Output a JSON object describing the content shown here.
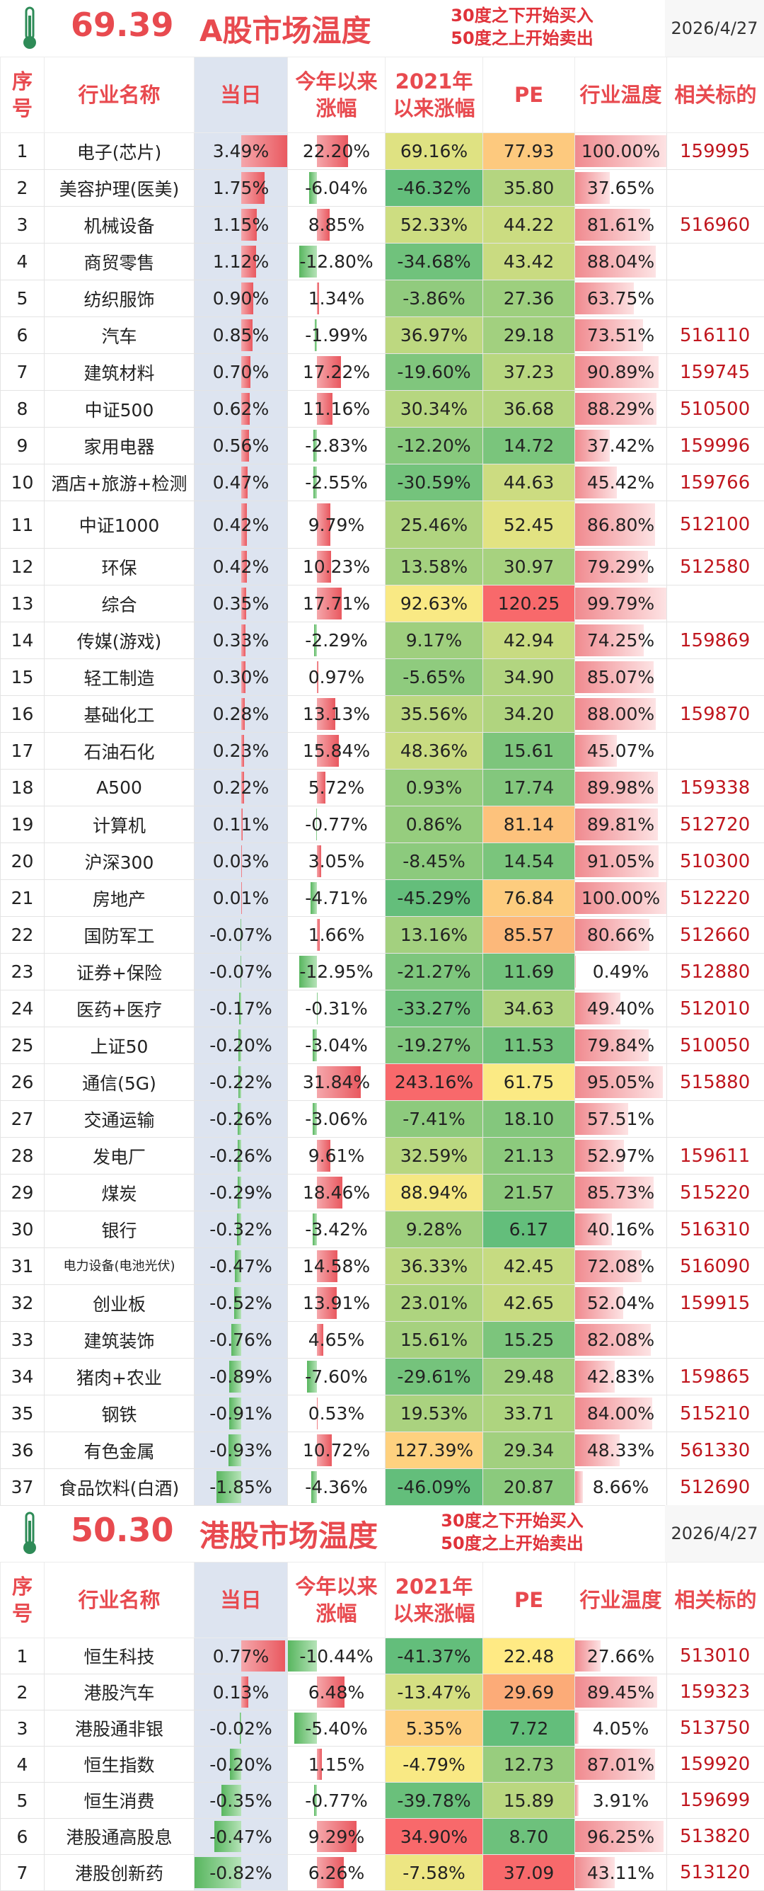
{
  "a_share": {
    "temperature": "69.39",
    "title": "A股市场温度",
    "rule_line1": "30度之下开始买入",
    "rule_line2": "50度之上开始卖出",
    "date": "2026/4/27",
    "headers": [
      "序号",
      "行业名称",
      "当日",
      "今年以来涨幅",
      "2021年以来涨幅",
      "PE",
      "行业温度",
      "相关标的"
    ],
    "rows": [
      {
        "no": "1",
        "name": "电子(芯片)",
        "today": "3.49%",
        "ytd": "22.20%",
        "since2021": "69.16%",
        "pe": "77.93",
        "temp": "100.00%",
        "code": "159995"
      },
      {
        "no": "2",
        "name": "美容护理(医美)",
        "today": "1.75%",
        "ytd": "-6.04%",
        "since2021": "-46.32%",
        "pe": "35.80",
        "temp": "37.65%",
        "code": ""
      },
      {
        "no": "3",
        "name": "机械设备",
        "today": "1.15%",
        "ytd": "8.85%",
        "since2021": "52.33%",
        "pe": "44.22",
        "temp": "81.61%",
        "code": "516960"
      },
      {
        "no": "4",
        "name": "商贸零售",
        "today": "1.12%",
        "ytd": "-12.80%",
        "since2021": "-34.68%",
        "pe": "43.42",
        "temp": "88.04%",
        "code": ""
      },
      {
        "no": "5",
        "name": "纺织服饰",
        "today": "0.90%",
        "ytd": "1.34%",
        "since2021": "-3.86%",
        "pe": "27.36",
        "temp": "63.75%",
        "code": ""
      },
      {
        "no": "6",
        "name": "汽车",
        "today": "0.85%",
        "ytd": "-1.99%",
        "since2021": "36.97%",
        "pe": "29.18",
        "temp": "73.51%",
        "code": "516110"
      },
      {
        "no": "7",
        "name": "建筑材料",
        "today": "0.70%",
        "ytd": "17.22%",
        "since2021": "-19.60%",
        "pe": "37.23",
        "temp": "90.89%",
        "code": "159745"
      },
      {
        "no": "8",
        "name": "中证500",
        "today": "0.62%",
        "ytd": "11.16%",
        "since2021": "30.34%",
        "pe": "36.68",
        "temp": "88.29%",
        "code": "510500"
      },
      {
        "no": "9",
        "name": "家用电器",
        "today": "0.56%",
        "ytd": "-2.83%",
        "since2021": "-12.20%",
        "pe": "14.72",
        "temp": "37.42%",
        "code": "159996"
      },
      {
        "no": "10",
        "name": "酒店+旅游+检测",
        "today": "0.47%",
        "ytd": "-2.55%",
        "since2021": "-30.59%",
        "pe": "44.63",
        "temp": "45.42%",
        "code": "159766"
      },
      {
        "no": "11",
        "name": "中证1000",
        "today": "0.42%",
        "ytd": "9.79%",
        "since2021": "25.46%",
        "pe": "52.45",
        "temp": "86.80%",
        "code": "512100"
      },
      {
        "no": "12",
        "name": "环保",
        "today": "0.42%",
        "ytd": "10.23%",
        "since2021": "13.58%",
        "pe": "30.97",
        "temp": "79.29%",
        "code": "512580"
      },
      {
        "no": "13",
        "name": "综合",
        "today": "0.35%",
        "ytd": "17.71%",
        "since2021": "92.63%",
        "pe": "120.25",
        "temp": "99.79%",
        "code": ""
      },
      {
        "no": "14",
        "name": "传媒(游戏)",
        "today": "0.33%",
        "ytd": "-2.29%",
        "since2021": "9.17%",
        "pe": "42.94",
        "temp": "74.25%",
        "code": "159869"
      },
      {
        "no": "15",
        "name": "轻工制造",
        "today": "0.30%",
        "ytd": "0.97%",
        "since2021": "-5.65%",
        "pe": "34.90",
        "temp": "85.07%",
        "code": ""
      },
      {
        "no": "16",
        "name": "基础化工",
        "today": "0.28%",
        "ytd": "13.13%",
        "since2021": "35.56%",
        "pe": "34.20",
        "temp": "88.00%",
        "code": "159870"
      },
      {
        "no": "17",
        "name": "石油石化",
        "today": "0.23%",
        "ytd": "15.84%",
        "since2021": "48.36%",
        "pe": "15.61",
        "temp": "45.07%",
        "code": ""
      },
      {
        "no": "18",
        "name": "A500",
        "today": "0.22%",
        "ytd": "5.72%",
        "since2021": "0.93%",
        "pe": "17.74",
        "temp": "89.98%",
        "code": "159338"
      },
      {
        "no": "19",
        "name": "计算机",
        "today": "0.11%",
        "ytd": "-0.77%",
        "since2021": "0.86%",
        "pe": "81.14",
        "temp": "89.81%",
        "code": "512720"
      },
      {
        "no": "20",
        "name": "沪深300",
        "today": "0.03%",
        "ytd": "3.05%",
        "since2021": "-8.45%",
        "pe": "14.54",
        "temp": "91.05%",
        "code": "510300"
      },
      {
        "no": "21",
        "name": "房地产",
        "today": "0.01%",
        "ytd": "-4.71%",
        "since2021": "-45.29%",
        "pe": "76.84",
        "temp": "100.00%",
        "code": "512220"
      },
      {
        "no": "22",
        "name": "国防军工",
        "today": "-0.07%",
        "ytd": "1.66%",
        "since2021": "13.16%",
        "pe": "85.57",
        "temp": "80.66%",
        "code": "512660"
      },
      {
        "no": "23",
        "name": "证券+保险",
        "today": "-0.07%",
        "ytd": "-12.95%",
        "since2021": "-21.27%",
        "pe": "11.69",
        "temp": "0.49%",
        "code": "512880"
      },
      {
        "no": "24",
        "name": "医药+医疗",
        "today": "-0.17%",
        "ytd": "-0.31%",
        "since2021": "-33.27%",
        "pe": "34.63",
        "temp": "49.40%",
        "code": "512010"
      },
      {
        "no": "25",
        "name": "上证50",
        "today": "-0.20%",
        "ytd": "-3.04%",
        "since2021": "-19.27%",
        "pe": "11.53",
        "temp": "79.84%",
        "code": "510050"
      },
      {
        "no": "26",
        "name": "通信(5G)",
        "today": "-0.22%",
        "ytd": "31.84%",
        "since2021": "243.16%",
        "pe": "61.75",
        "temp": "95.05%",
        "code": "515880"
      },
      {
        "no": "27",
        "name": "交通运输",
        "today": "-0.26%",
        "ytd": "-3.06%",
        "since2021": "-7.41%",
        "pe": "18.10",
        "temp": "57.51%",
        "code": ""
      },
      {
        "no": "28",
        "name": "发电厂",
        "today": "-0.26%",
        "ytd": "9.61%",
        "since2021": "32.59%",
        "pe": "21.13",
        "temp": "52.97%",
        "code": "159611"
      },
      {
        "no": "29",
        "name": "煤炭",
        "today": "-0.29%",
        "ytd": "18.46%",
        "since2021": "88.94%",
        "pe": "21.57",
        "temp": "85.73%",
        "code": "515220"
      },
      {
        "no": "30",
        "name": "银行",
        "today": "-0.32%",
        "ytd": "-3.42%",
        "since2021": "9.28%",
        "pe": "6.17",
        "temp": "40.16%",
        "code": "516310"
      },
      {
        "no": "31",
        "name": "电力设备(电池光伏)",
        "today": "-0.47%",
        "ytd": "14.58%",
        "since2021": "36.33%",
        "pe": "42.45",
        "temp": "72.08%",
        "code": "516090"
      },
      {
        "no": "32",
        "name": "创业板",
        "today": "-0.52%",
        "ytd": "13.91%",
        "since2021": "23.01%",
        "pe": "42.65",
        "temp": "52.04%",
        "code": "159915"
      },
      {
        "no": "33",
        "name": "建筑装饰",
        "today": "-0.76%",
        "ytd": "4.65%",
        "since2021": "15.61%",
        "pe": "15.25",
        "temp": "82.08%",
        "code": ""
      },
      {
        "no": "34",
        "name": "猪肉+农业",
        "today": "-0.89%",
        "ytd": "-7.60%",
        "since2021": "-29.61%",
        "pe": "29.48",
        "temp": "42.83%",
        "code": "159865"
      },
      {
        "no": "35",
        "name": "钢铁",
        "today": "-0.91%",
        "ytd": "0.53%",
        "since2021": "19.53%",
        "pe": "33.71",
        "temp": "84.00%",
        "code": "515210"
      },
      {
        "no": "36",
        "name": "有色金属",
        "today": "-0.93%",
        "ytd": "10.72%",
        "since2021": "127.39%",
        "pe": "29.34",
        "temp": "48.33%",
        "code": "561330"
      },
      {
        "no": "37",
        "name": "食品饮料(白酒)",
        "today": "-1.85%",
        "ytd": "-4.36%",
        "since2021": "-46.09%",
        "pe": "20.87",
        "temp": "8.66%",
        "code": "512690"
      }
    ]
  },
  "hk_share": {
    "temperature": "50.30",
    "title": "港股市场温度",
    "rule_line1": "30度之下开始买入",
    "rule_line2": "50度之上开始卖出",
    "date": "2026/4/27",
    "headers": [
      "序号",
      "行业名称",
      "当日",
      "今年以来涨幅",
      "2021年以来涨幅",
      "PE",
      "行业温度",
      "相关标的"
    ],
    "rows": [
      {
        "no": "1",
        "name": "恒生科技",
        "today": "0.77%",
        "ytd": "-10.44%",
        "since2021": "-41.37%",
        "pe": "22.48",
        "temp": "27.66%",
        "code": "513010"
      },
      {
        "no": "2",
        "name": "港股汽车",
        "today": "0.13%",
        "ytd": "6.48%",
        "since2021": "-13.47%",
        "pe": "29.69",
        "temp": "89.45%",
        "code": "159323"
      },
      {
        "no": "3",
        "name": "港股通非银",
        "today": "-0.02%",
        "ytd": "-5.40%",
        "since2021": "5.35%",
        "pe": "7.72",
        "temp": "4.05%",
        "code": "513750"
      },
      {
        "no": "4",
        "name": "恒生指数",
        "today": "-0.20%",
        "ytd": "1.15%",
        "since2021": "-4.79%",
        "pe": "12.73",
        "temp": "87.01%",
        "code": "159920"
      },
      {
        "no": "5",
        "name": "恒生消费",
        "today": "-0.35%",
        "ytd": "-0.77%",
        "since2021": "-39.78%",
        "pe": "15.89",
        "temp": "3.91%",
        "code": "159699"
      },
      {
        "no": "6",
        "name": "港股通高股息",
        "today": "-0.47%",
        "ytd": "9.29%",
        "since2021": "34.90%",
        "pe": "8.70",
        "temp": "96.25%",
        "code": "513820"
      },
      {
        "no": "7",
        "name": "港股创新药",
        "today": "-0.82%",
        "ytd": "6.26%",
        "since2021": "-7.58%",
        "pe": "37.09",
        "temp": "43.11%",
        "code": "513120"
      }
    ]
  },
  "colors": {
    "accent": "#e84a4f",
    "code": "#c0161e",
    "today_bg": "#dde4f0"
  }
}
